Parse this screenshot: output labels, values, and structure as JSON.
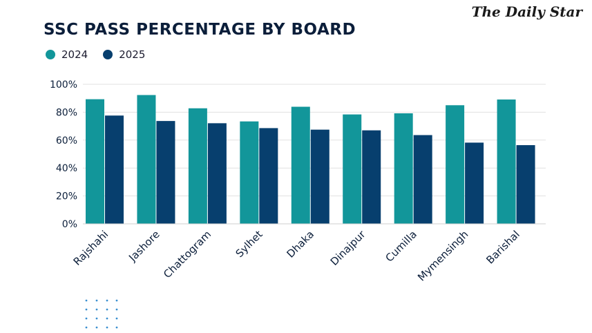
{
  "brand": "The Daily Star",
  "colors": {
    "s2024": "#12969a",
    "s2025": "#073f6e",
    "grid": "#e1e1e1",
    "text": "#0b1e3a"
  },
  "chart_data": {
    "type": "bar",
    "title": "SSC PASS PERCENTAGE BY BOARD",
    "categories": [
      "Rajshahi",
      "Jashore",
      "Chattogram",
      "Sylhet",
      "Dhaka",
      "Dinajpur",
      "Cumilla",
      "Mymensingh",
      "Barishal"
    ],
    "series": [
      {
        "name": "2024",
        "values": [
          89.3,
          92.3,
          82.8,
          73.4,
          83.9,
          78.4,
          79.2,
          85.0,
          89.1
        ]
      },
      {
        "name": "2025",
        "values": [
          77.6,
          73.7,
          72.1,
          68.6,
          67.5,
          67.0,
          63.6,
          58.2,
          56.4
        ]
      }
    ],
    "ylim": [
      0,
      100
    ],
    "yticks": [
      "0%",
      "20%",
      "40%",
      "60%",
      "80%",
      "100%"
    ],
    "legend": "top-left",
    "grid": true
  }
}
